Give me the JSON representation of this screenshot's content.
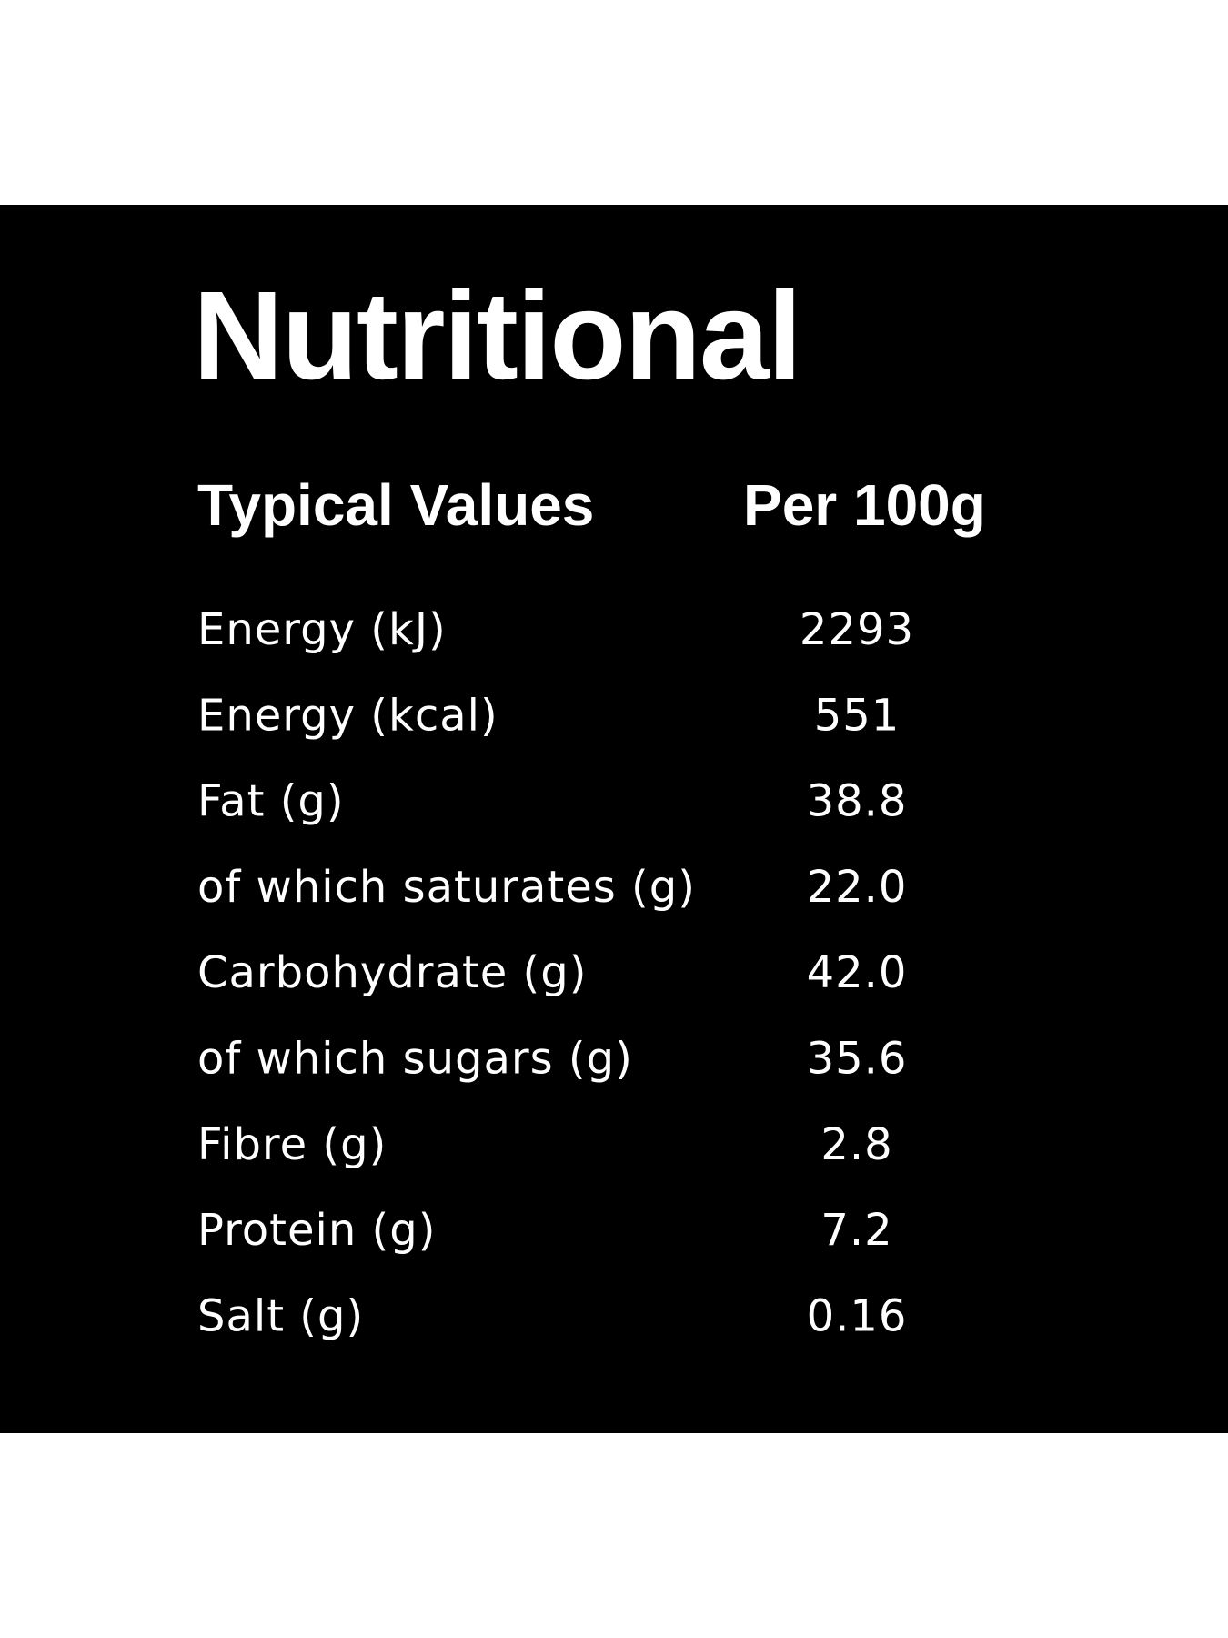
{
  "title": "Nutritional",
  "table": {
    "header": [
      "Typical Values",
      "Per 100g"
    ],
    "rows": [
      [
        "Energy (kJ)",
        "2293"
      ],
      [
        "Energy (kcal)",
        "551"
      ],
      [
        "Fat (g)",
        "38.8"
      ],
      [
        "of which saturates (g)",
        "22.0"
      ],
      [
        "Carbohydrate (g)",
        "42.0"
      ],
      [
        "of which sugars (g)",
        "35.6"
      ],
      [
        "Fibre (g)",
        "2.8"
      ],
      [
        "Protein (g)",
        "7.2"
      ],
      [
        "Salt (g)",
        "0.16"
      ]
    ]
  }
}
